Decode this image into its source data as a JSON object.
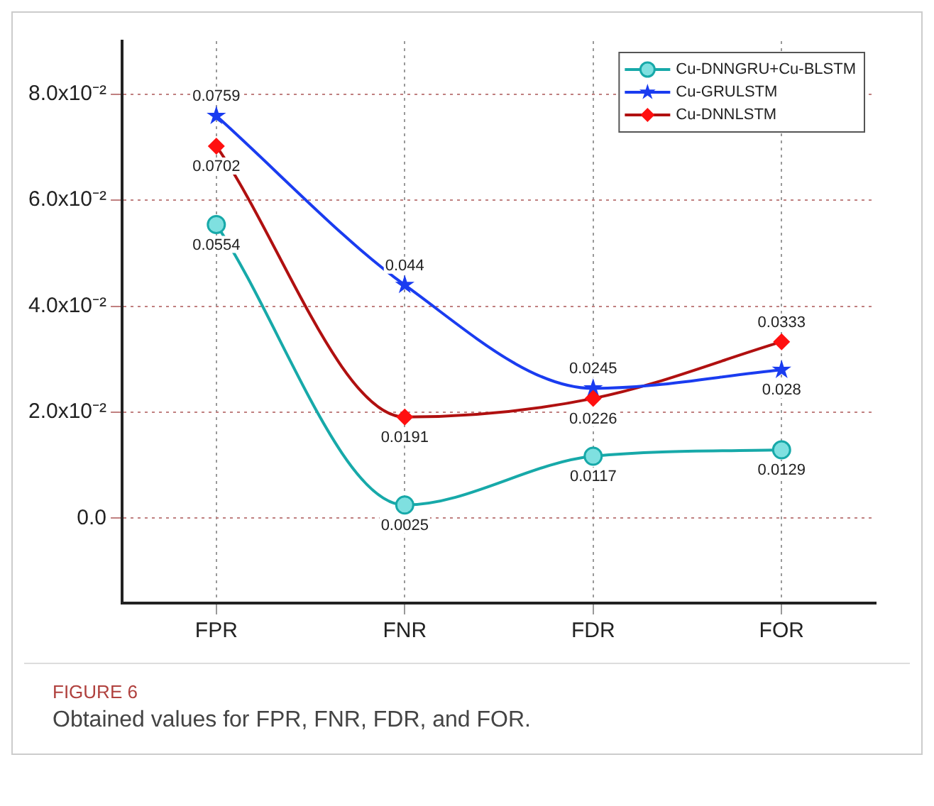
{
  "chart_data": {
    "type": "line",
    "categories": [
      "FPR",
      "FNR",
      "FDR",
      "FOR"
    ],
    "series": [
      {
        "name": "Cu-DNNGRU+Cu-BLSTM",
        "color": "#17a9a9",
        "marker": "circle",
        "values": [
          0.0554,
          0.0025,
          0.0117,
          0.0129
        ]
      },
      {
        "name": "Cu-GRULSTM",
        "color": "#1a3cf0",
        "marker": "star",
        "values": [
          0.0759,
          0.044,
          0.0245,
          0.028
        ]
      },
      {
        "name": "Cu-DNNLSTM",
        "color": "#b01010",
        "marker": "diamond",
        "values": [
          0.0702,
          0.0191,
          0.0226,
          0.0333
        ]
      }
    ],
    "ylim": [
      -0.016,
      0.09
    ],
    "yticks": [
      {
        "value": 0,
        "label": "0.0"
      },
      {
        "value": 0.02,
        "label": "2.0x10⁻²"
      },
      {
        "value": 0.04,
        "label": "4.0x10⁻²"
      },
      {
        "value": 0.06,
        "label": "6.0x10⁻²"
      },
      {
        "value": 0.08,
        "label": "8.0x10⁻²"
      }
    ],
    "grid": true,
    "legend": "top right",
    "data_labels": true,
    "line_style": "solid",
    "annotations": [
      "FIGURE 6",
      "Obtained values for FPR, FNR, FDR, and FOR."
    ]
  }
}
